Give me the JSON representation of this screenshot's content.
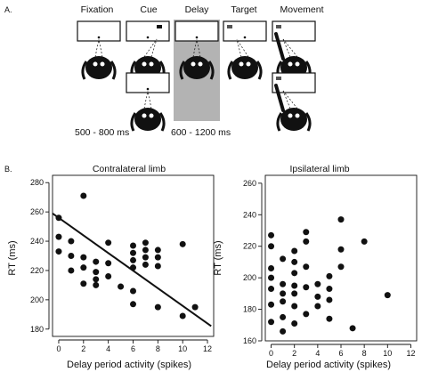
{
  "panel_a": {
    "label": "A.",
    "phases": [
      "Fixation",
      "Cue",
      "Delay",
      "Target",
      "Movement"
    ],
    "durations": [
      "500 - 800 ms",
      "600 - 1200 ms"
    ]
  },
  "panel_b": {
    "label": "B.",
    "y_axis_label": "RT (ms)",
    "x_axis_label": "Delay period activity (spikes)"
  },
  "colors": {
    "delay_shade": "#b3b3b3",
    "ink": "#111111",
    "target_marker": "#555555"
  },
  "chart_data": [
    {
      "type": "scatter",
      "title": "Contralateral limb",
      "xlabel": "Delay period activity (spikes)",
      "ylabel": "RT (ms)",
      "xlim": [
        -0.5,
        12.5
      ],
      "ylim": [
        175,
        285
      ],
      "xticks": [
        "0",
        "2",
        "4",
        "6",
        "8",
        "10",
        "12"
      ],
      "yticks": [
        "180",
        "200",
        "220",
        "240",
        "260",
        "280"
      ],
      "fit_line": {
        "x": [
          -0.5,
          12.3
        ],
        "y": [
          259,
          182
        ]
      },
      "points": [
        [
          0,
          256
        ],
        [
          0,
          243
        ],
        [
          0,
          233
        ],
        [
          1,
          240
        ],
        [
          1,
          230
        ],
        [
          1,
          220
        ],
        [
          2,
          271
        ],
        [
          2,
          229
        ],
        [
          2,
          222
        ],
        [
          2,
          211
        ],
        [
          3,
          226
        ],
        [
          3,
          219
        ],
        [
          3,
          214
        ],
        [
          3,
          210
        ],
        [
          4,
          239
        ],
        [
          4,
          225
        ],
        [
          4,
          216
        ],
        [
          5,
          209
        ],
        [
          6,
          237
        ],
        [
          6,
          232
        ],
        [
          6,
          227
        ],
        [
          6,
          222
        ],
        [
          6,
          206
        ],
        [
          6,
          197
        ],
        [
          7,
          239
        ],
        [
          7,
          234
        ],
        [
          7,
          229
        ],
        [
          7,
          224
        ],
        [
          8,
          234
        ],
        [
          8,
          229
        ],
        [
          8,
          223
        ],
        [
          8,
          195
        ],
        [
          10,
          238
        ],
        [
          10,
          189
        ],
        [
          11,
          195
        ]
      ]
    },
    {
      "type": "scatter",
      "title": "Ipsilateral limb",
      "xlabel": "Delay period activity (spikes)",
      "ylabel": "RT (ms)",
      "xlim": [
        -0.5,
        12.5
      ],
      "ylim": [
        160,
        265
      ],
      "xticks": [
        "0",
        "2",
        "4",
        "6",
        "8",
        "10",
        "12"
      ],
      "yticks": [
        "160",
        "180",
        "200",
        "220",
        "240",
        "260"
      ],
      "points": [
        [
          0,
          227
        ],
        [
          0,
          220
        ],
        [
          0,
          206
        ],
        [
          0,
          200
        ],
        [
          0,
          193
        ],
        [
          0,
          183
        ],
        [
          0,
          172
        ],
        [
          1,
          212
        ],
        [
          1,
          196
        ],
        [
          1,
          190
        ],
        [
          1,
          185
        ],
        [
          1,
          175
        ],
        [
          1,
          166
        ],
        [
          2,
          217
        ],
        [
          2,
          210
        ],
        [
          2,
          203
        ],
        [
          2,
          195
        ],
        [
          2,
          190
        ],
        [
          2,
          182
        ],
        [
          2,
          171
        ],
        [
          3,
          229
        ],
        [
          3,
          223
        ],
        [
          3,
          207
        ],
        [
          3,
          194
        ],
        [
          3,
          177
        ],
        [
          4,
          196
        ],
        [
          4,
          188
        ],
        [
          4,
          182
        ],
        [
          5,
          201
        ],
        [
          5,
          193
        ],
        [
          5,
          186
        ],
        [
          5,
          174
        ],
        [
          6,
          237
        ],
        [
          6,
          218
        ],
        [
          6,
          207
        ],
        [
          7,
          168
        ],
        [
          8,
          223
        ],
        [
          10,
          189
        ]
      ]
    }
  ]
}
